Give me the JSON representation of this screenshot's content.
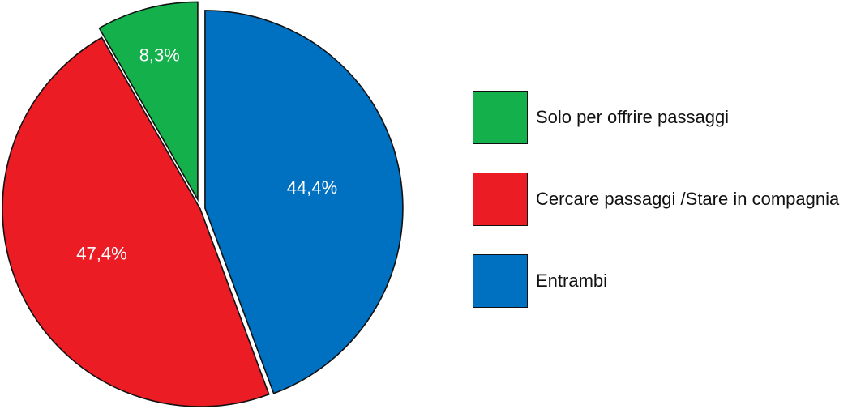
{
  "chart_data": {
    "type": "pie",
    "slices": [
      {
        "label": "Solo per offrire passaggi",
        "value": 8.3,
        "display": "8,3%",
        "color": "#14b04c",
        "exploded": true
      },
      {
        "label": "Cercare passaggi /Stare in compagnia",
        "value": 47.4,
        "display": "47,4%",
        "color": "#ec1c24",
        "exploded": false
      },
      {
        "label": "Entrambi",
        "value": 44.4,
        "display": "44,4%",
        "color": "#0070c0",
        "exploded": true
      }
    ],
    "legend_position": "right"
  }
}
